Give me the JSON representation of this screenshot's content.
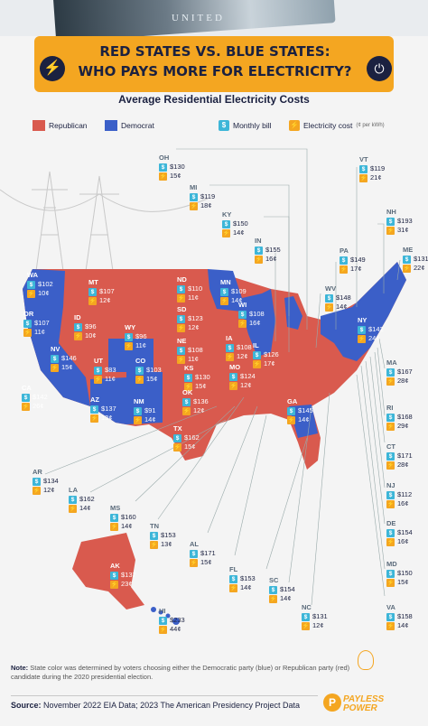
{
  "header": {
    "money_text": "UNITED",
    "title_line1": "RED STATES VS. BLUE STATES:",
    "title_line2": "WHO PAYS MORE FOR ELECTRICITY?",
    "subtitle": "Average Residential Electricity Costs"
  },
  "legend": {
    "republican": "Republican",
    "democrat": "Democrat",
    "monthly_bill": "Monthly bill",
    "electricity_cost": "Electricity cost",
    "electricity_cost_unit": "(¢ per kWh)",
    "bill_icon": "$",
    "cost_icon": "⚡"
  },
  "colors": {
    "republican": "#d95a4e",
    "democrat": "#3b5fc8",
    "accent": "#f4a621",
    "bill_icon": "#3db6d8",
    "navy": "#1b2140"
  },
  "states": [
    {
      "abbr": "WA",
      "bill": "$102",
      "cost": "10¢",
      "party": "democrat"
    },
    {
      "abbr": "OR",
      "bill": "$107",
      "cost": "11¢",
      "party": "democrat"
    },
    {
      "abbr": "CA",
      "bill": "$142",
      "cost": "26¢",
      "party": "democrat"
    },
    {
      "abbr": "NV",
      "bill": "$146",
      "cost": "15¢",
      "party": "democrat"
    },
    {
      "abbr": "ID",
      "bill": "$96",
      "cost": "10¢",
      "party": "republican"
    },
    {
      "abbr": "MT",
      "bill": "$107",
      "cost": "12¢",
      "party": "republican"
    },
    {
      "abbr": "WY",
      "bill": "$96",
      "cost": "11¢",
      "party": "republican"
    },
    {
      "abbr": "UT",
      "bill": "$83",
      "cost": "11¢",
      "party": "republican"
    },
    {
      "abbr": "AZ",
      "bill": "$137",
      "cost": "13¢",
      "party": "democrat"
    },
    {
      "abbr": "CO",
      "bill": "$103",
      "cost": "15¢",
      "party": "democrat"
    },
    {
      "abbr": "NM",
      "bill": "$91",
      "cost": "14¢",
      "party": "democrat"
    },
    {
      "abbr": "ND",
      "bill": "$110",
      "cost": "11¢",
      "party": "republican"
    },
    {
      "abbr": "SD",
      "bill": "$123",
      "cost": "12¢",
      "party": "republican"
    },
    {
      "abbr": "NE",
      "bill": "$108",
      "cost": "11¢",
      "party": "republican"
    },
    {
      "abbr": "KS",
      "bill": "$130",
      "cost": "15¢",
      "party": "republican"
    },
    {
      "abbr": "OK",
      "bill": "$136",
      "cost": "12¢",
      "party": "republican"
    },
    {
      "abbr": "TX",
      "bill": "$162",
      "cost": "15¢",
      "party": "republican"
    },
    {
      "abbr": "MN",
      "bill": "$109",
      "cost": "14¢",
      "party": "democrat"
    },
    {
      "abbr": "IA",
      "bill": "$108",
      "cost": "12¢",
      "party": "republican"
    },
    {
      "abbr": "MO",
      "bill": "$124",
      "cost": "12¢",
      "party": "republican"
    },
    {
      "abbr": "WI",
      "bill": "$108",
      "cost": "16¢",
      "party": "democrat"
    },
    {
      "abbr": "IL",
      "bill": "$126",
      "cost": "17¢",
      "party": "democrat"
    },
    {
      "abbr": "GA",
      "bill": "$145",
      "cost": "14¢",
      "party": "democrat"
    },
    {
      "abbr": "NY",
      "bill": "$142",
      "cost": "24¢",
      "party": "democrat"
    },
    {
      "abbr": "OH",
      "bill": "$130",
      "cost": "15¢",
      "party": "republican"
    },
    {
      "abbr": "MI",
      "bill": "$119",
      "cost": "18¢",
      "party": "democrat"
    },
    {
      "abbr": "KY",
      "bill": "$150",
      "cost": "14¢",
      "party": "republican"
    },
    {
      "abbr": "IN",
      "bill": "$155",
      "cost": "16¢",
      "party": "republican"
    },
    {
      "abbr": "WV",
      "bill": "$148",
      "cost": "14¢",
      "party": "republican"
    },
    {
      "abbr": "PA",
      "bill": "$149",
      "cost": "17¢",
      "party": "democrat"
    },
    {
      "abbr": "VT",
      "bill": "$119",
      "cost": "21¢",
      "party": "democrat"
    },
    {
      "abbr": "NH",
      "bill": "$193",
      "cost": "31¢",
      "party": "democrat"
    },
    {
      "abbr": "ME",
      "bill": "$131",
      "cost": "22¢",
      "party": "democrat"
    },
    {
      "abbr": "MA",
      "bill": "$167",
      "cost": "28¢",
      "party": "democrat"
    },
    {
      "abbr": "RI",
      "bill": "$168",
      "cost": "29¢",
      "party": "democrat"
    },
    {
      "abbr": "CT",
      "bill": "$171",
      "cost": "28¢",
      "party": "democrat"
    },
    {
      "abbr": "NJ",
      "bill": "$112",
      "cost": "16¢",
      "party": "democrat"
    },
    {
      "abbr": "DE",
      "bill": "$154",
      "cost": "16¢",
      "party": "democrat"
    },
    {
      "abbr": "MD",
      "bill": "$150",
      "cost": "15¢",
      "party": "democrat"
    },
    {
      "abbr": "VA",
      "bill": "$158",
      "cost": "14¢",
      "party": "democrat"
    },
    {
      "abbr": "NC",
      "bill": "$131",
      "cost": "12¢",
      "party": "republican"
    },
    {
      "abbr": "SC",
      "bill": "$154",
      "cost": "14¢",
      "party": "republican"
    },
    {
      "abbr": "FL",
      "bill": "$153",
      "cost": "14¢",
      "party": "republican"
    },
    {
      "abbr": "AL",
      "bill": "$171",
      "cost": "15¢",
      "party": "republican"
    },
    {
      "abbr": "TN",
      "bill": "$153",
      "cost": "13¢",
      "party": "republican"
    },
    {
      "abbr": "MS",
      "bill": "$160",
      "cost": "14¢",
      "party": "republican"
    },
    {
      "abbr": "LA",
      "bill": "$162",
      "cost": "14¢",
      "party": "republican"
    },
    {
      "abbr": "AR",
      "bill": "$134",
      "cost": "12¢",
      "party": "republican"
    },
    {
      "abbr": "AK",
      "bill": "$137",
      "cost": "23¢",
      "party": "republican"
    },
    {
      "abbr": "HI",
      "bill": "$233",
      "cost": "44¢",
      "party": "democrat"
    }
  ],
  "footer": {
    "note_label": "Note:",
    "note_text": "State color was determined by voters choosing either the Democratic party (blue) or Republican party (red) candidate during the 2020 presidential election.",
    "source_label": "Source:",
    "source_text": "November 2022 EIA Data; 2023 The American Presidency Project Data",
    "brand_line1": "PAYLESS",
    "brand_line2": "POWER",
    "brand_logo": "P"
  }
}
